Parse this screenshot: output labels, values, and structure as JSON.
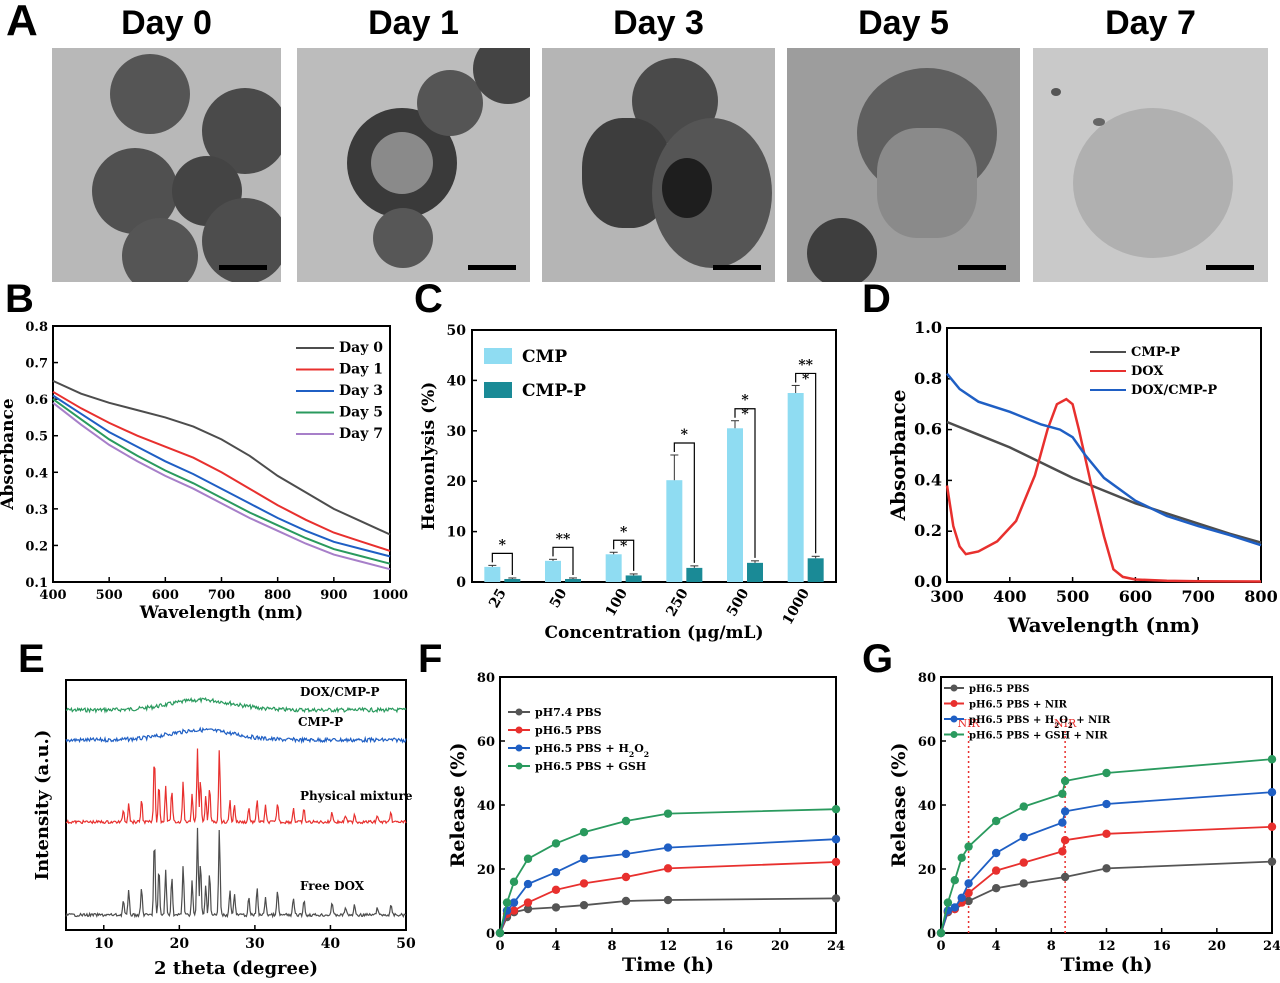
{
  "panel_letters": {
    "A": "A",
    "B": "B",
    "C": "C",
    "D": "D",
    "E": "E",
    "F": "F",
    "G": "G"
  },
  "tem_days": [
    "Day 0",
    "Day 1",
    "Day 3",
    "Day 5",
    "Day 7"
  ],
  "chart_data": [
    {
      "id": "B",
      "type": "line",
      "xlabel": "Wavelength (nm)",
      "ylabel": "Absorbance",
      "xlim": [
        400,
        1000
      ],
      "ylim": [
        0.1,
        0.8
      ],
      "xticks": [
        400,
        500,
        600,
        700,
        800,
        900,
        1000
      ],
      "yticks": [
        0.1,
        0.2,
        0.3,
        0.4,
        0.5,
        0.6,
        0.7,
        0.8
      ],
      "legend_position": "top-right",
      "series": [
        {
          "name": "Day 0",
          "color": "#4d4d4d",
          "x": [
            400,
            450,
            500,
            550,
            600,
            650,
            700,
            750,
            800,
            850,
            900,
            950,
            1000
          ],
          "y": [
            0.65,
            0.615,
            0.59,
            0.57,
            0.55,
            0.525,
            0.49,
            0.445,
            0.39,
            0.345,
            0.3,
            0.265,
            0.23
          ]
        },
        {
          "name": "Day 1",
          "color": "#e8302e",
          "x": [
            400,
            450,
            500,
            550,
            600,
            650,
            700,
            750,
            800,
            850,
            900,
            950,
            1000
          ],
          "y": [
            0.62,
            0.575,
            0.535,
            0.5,
            0.47,
            0.44,
            0.4,
            0.355,
            0.31,
            0.27,
            0.235,
            0.21,
            0.185
          ]
        },
        {
          "name": "Day 3",
          "color": "#1f5fc4",
          "x": [
            400,
            450,
            500,
            550,
            600,
            650,
            700,
            750,
            800,
            850,
            900,
            950,
            1000
          ],
          "y": [
            0.61,
            0.56,
            0.51,
            0.47,
            0.43,
            0.395,
            0.355,
            0.315,
            0.275,
            0.24,
            0.21,
            0.19,
            0.17
          ]
        },
        {
          "name": "Day 5",
          "color": "#2a9a5e",
          "x": [
            400,
            450,
            500,
            550,
            600,
            650,
            700,
            750,
            800,
            850,
            900,
            950,
            1000
          ],
          "y": [
            0.6,
            0.545,
            0.49,
            0.445,
            0.405,
            0.37,
            0.33,
            0.29,
            0.255,
            0.22,
            0.19,
            0.17,
            0.15
          ]
        },
        {
          "name": "Day 7",
          "color": "#a77fc9",
          "x": [
            400,
            450,
            500,
            550,
            600,
            650,
            700,
            750,
            800,
            850,
            900,
            950,
            1000
          ],
          "y": [
            0.59,
            0.53,
            0.475,
            0.43,
            0.39,
            0.355,
            0.315,
            0.275,
            0.24,
            0.205,
            0.175,
            0.155,
            0.135
          ]
        }
      ]
    },
    {
      "id": "C",
      "type": "bar",
      "xlabel": "Concentration (μg/mL)",
      "ylabel": "Hemonlysis (%)",
      "ylim": [
        0,
        50
      ],
      "yticks": [
        0,
        10,
        20,
        30,
        40,
        50
      ],
      "categories": [
        "25",
        "50",
        "100",
        "250",
        "500",
        "1000"
      ],
      "legend_position": "top-left",
      "series": [
        {
          "name": "CMP",
          "color": "#8fdcf2",
          "values": [
            3.0,
            4.2,
            5.5,
            20.2,
            30.5,
            37.5
          ],
          "errors": [
            0.3,
            0.3,
            0.4,
            5.0,
            1.5,
            1.5
          ]
        },
        {
          "name": "CMP-P",
          "color": "#1a8a96",
          "values": [
            0.6,
            0.6,
            1.3,
            2.8,
            3.8,
            4.7
          ],
          "errors": [
            0.2,
            0.2,
            0.3,
            0.4,
            0.4,
            0.4
          ]
        }
      ],
      "significance": [
        "*",
        "**",
        "*\n*",
        "*",
        "*\n*",
        "**\n*"
      ]
    },
    {
      "id": "D",
      "type": "line",
      "xlabel": "Wavelength (nm)",
      "ylabel": "Absorbance",
      "xlim": [
        300,
        800
      ],
      "ylim": [
        0,
        1.0
      ],
      "xticks": [
        300,
        400,
        500,
        600,
        700,
        800
      ],
      "yticks": [
        0.0,
        0.2,
        0.4,
        0.6,
        0.8,
        1.0
      ],
      "legend_position": "top-right",
      "series": [
        {
          "name": "CMP-P",
          "color": "#4d4d4d",
          "x": [
            300,
            350,
            400,
            450,
            500,
            550,
            600,
            650,
            700,
            750,
            800
          ],
          "y": [
            0.63,
            0.58,
            0.53,
            0.47,
            0.41,
            0.36,
            0.31,
            0.27,
            0.23,
            0.19,
            0.155
          ]
        },
        {
          "name": "DOX",
          "color": "#e8302e",
          "x": [
            300,
            310,
            320,
            330,
            350,
            380,
            410,
            440,
            460,
            475,
            490,
            500,
            510,
            530,
            550,
            565,
            580,
            600,
            650,
            700,
            800
          ],
          "y": [
            0.38,
            0.22,
            0.14,
            0.11,
            0.12,
            0.16,
            0.24,
            0.42,
            0.6,
            0.7,
            0.72,
            0.7,
            0.6,
            0.38,
            0.18,
            0.05,
            0.02,
            0.01,
            0.005,
            0.003,
            0.002
          ]
        },
        {
          "name": "DOX/CMP-P",
          "color": "#1f5fc4",
          "x": [
            300,
            320,
            350,
            400,
            450,
            480,
            500,
            520,
            550,
            600,
            650,
            700,
            750,
            800
          ],
          "y": [
            0.82,
            0.76,
            0.71,
            0.67,
            0.62,
            0.6,
            0.57,
            0.5,
            0.41,
            0.32,
            0.26,
            0.22,
            0.185,
            0.145
          ]
        }
      ]
    },
    {
      "id": "E",
      "type": "line",
      "xlabel": "2 theta (degree)",
      "ylabel": "Intensity (a.u.)",
      "xlim": [
        5,
        50
      ],
      "xticks": [
        10,
        20,
        30,
        40,
        50
      ],
      "series": [
        {
          "name": "DOX/CMP-P",
          "color": "#2a9a5e"
        },
        {
          "name": "CMP-P",
          "color": "#1f5fc4"
        },
        {
          "name": "Physical mixture",
          "color": "#e8302e"
        },
        {
          "name": "Free DOX",
          "color": "#4d4d4d"
        }
      ],
      "peak_positions": [
        12.6,
        13.3,
        15.0,
        16.7,
        17.3,
        18.2,
        19.0,
        20.5,
        21.7,
        22.4,
        22.8,
        23.5,
        24.0,
        25.3,
        26.7,
        27.3,
        29.2,
        30.3,
        31.4,
        33.0,
        35.1,
        36.5,
        40.2,
        42.0,
        43.2,
        46.2,
        48.0
      ],
      "peak_heights": [
        0.18,
        0.28,
        0.32,
        0.9,
        0.55,
        0.52,
        0.45,
        0.58,
        0.4,
        1.0,
        0.62,
        0.35,
        0.5,
        1.0,
        0.3,
        0.25,
        0.2,
        0.32,
        0.22,
        0.28,
        0.2,
        0.18,
        0.15,
        0.1,
        0.12,
        0.1,
        0.12
      ]
    },
    {
      "id": "F",
      "type": "line",
      "xlabel": "Time (h)",
      "ylabel": "Release (%)",
      "xlim": [
        0,
        24
      ],
      "ylim": [
        0,
        80
      ],
      "xticks": [
        0,
        4,
        8,
        12,
        16,
        20,
        24
      ],
      "yticks": [
        0,
        20,
        40,
        60,
        80
      ],
      "legend_position": "top-left",
      "series": [
        {
          "name": "pH7.4 PBS",
          "color": "#555555",
          "x": [
            0,
            0.5,
            1,
            2,
            4,
            6,
            9,
            12,
            24
          ],
          "y": [
            0,
            5,
            6.5,
            7.5,
            8,
            8.7,
            10,
            10.3,
            10.8
          ]
        },
        {
          "name": "pH6.5 PBS",
          "color": "#e8302e",
          "x": [
            0,
            0.5,
            1,
            2,
            4,
            6,
            9,
            12,
            24
          ],
          "y": [
            0,
            6,
            7,
            9.5,
            13.5,
            15.5,
            17.5,
            20.2,
            22.2
          ]
        },
        {
          "name": "pH6.5 PBS + H2O2",
          "color": "#1f5fc4",
          "x": [
            0,
            0.5,
            1,
            2,
            4,
            6,
            9,
            12,
            24
          ],
          "y": [
            0,
            7,
            9.5,
            15.3,
            19,
            23.2,
            24.7,
            26.7,
            29.3
          ]
        },
        {
          "name": "pH6.5 PBS + GSH",
          "color": "#2a9a5e",
          "x": [
            0,
            0.5,
            1,
            2,
            4,
            6,
            9,
            12,
            24
          ],
          "y": [
            0,
            9.5,
            16,
            23.2,
            28,
            31.5,
            35,
            37.3,
            38.7
          ]
        }
      ]
    },
    {
      "id": "G",
      "type": "line",
      "xlabel": "Time (h)",
      "ylabel": "Release (%)",
      "xlim": [
        0,
        24
      ],
      "ylim": [
        0,
        80
      ],
      "xticks": [
        0,
        4,
        8,
        12,
        16,
        20,
        24
      ],
      "yticks": [
        0,
        20,
        40,
        60,
        80
      ],
      "legend_position": "top-left",
      "annotations": [
        {
          "label": "NIR",
          "x": 2
        },
        {
          "label": "NIR",
          "x": 9
        }
      ],
      "series": [
        {
          "name": "pH6.5 PBS",
          "color": "#555555",
          "x": [
            0,
            0.5,
            1,
            2,
            4,
            6,
            9,
            12,
            24
          ],
          "y": [
            0,
            6.5,
            7.5,
            10,
            14,
            15.5,
            17.5,
            20.2,
            22.3
          ]
        },
        {
          "name": "pH6.5 PBS + NIR",
          "color": "#e8302e",
          "x": [
            0,
            0.5,
            1,
            1.5,
            2,
            4,
            6,
            8.8,
            9,
            12,
            24
          ],
          "y": [
            0,
            6.8,
            7.5,
            9.5,
            12.5,
            19.5,
            22,
            25.5,
            29,
            31,
            33.2
          ]
        },
        {
          "name": "pH6.5 PBS + H2O2 + NIR",
          "color": "#1f5fc4",
          "x": [
            0,
            0.5,
            1,
            1.5,
            2,
            4,
            6,
            8.8,
            9,
            12,
            24
          ],
          "y": [
            0,
            7,
            8,
            11,
            15.5,
            25,
            30,
            34.5,
            38,
            40.3,
            44
          ]
        },
        {
          "name": "pH6.5 PBS + GSH + NIR",
          "color": "#2a9a5e",
          "x": [
            0,
            0.5,
            1,
            1.5,
            2,
            4,
            6,
            8.8,
            9,
            12,
            24
          ],
          "y": [
            0,
            9.5,
            16.5,
            23.5,
            27,
            35,
            39.5,
            43.5,
            47.5,
            50,
            54.3
          ]
        }
      ]
    }
  ]
}
